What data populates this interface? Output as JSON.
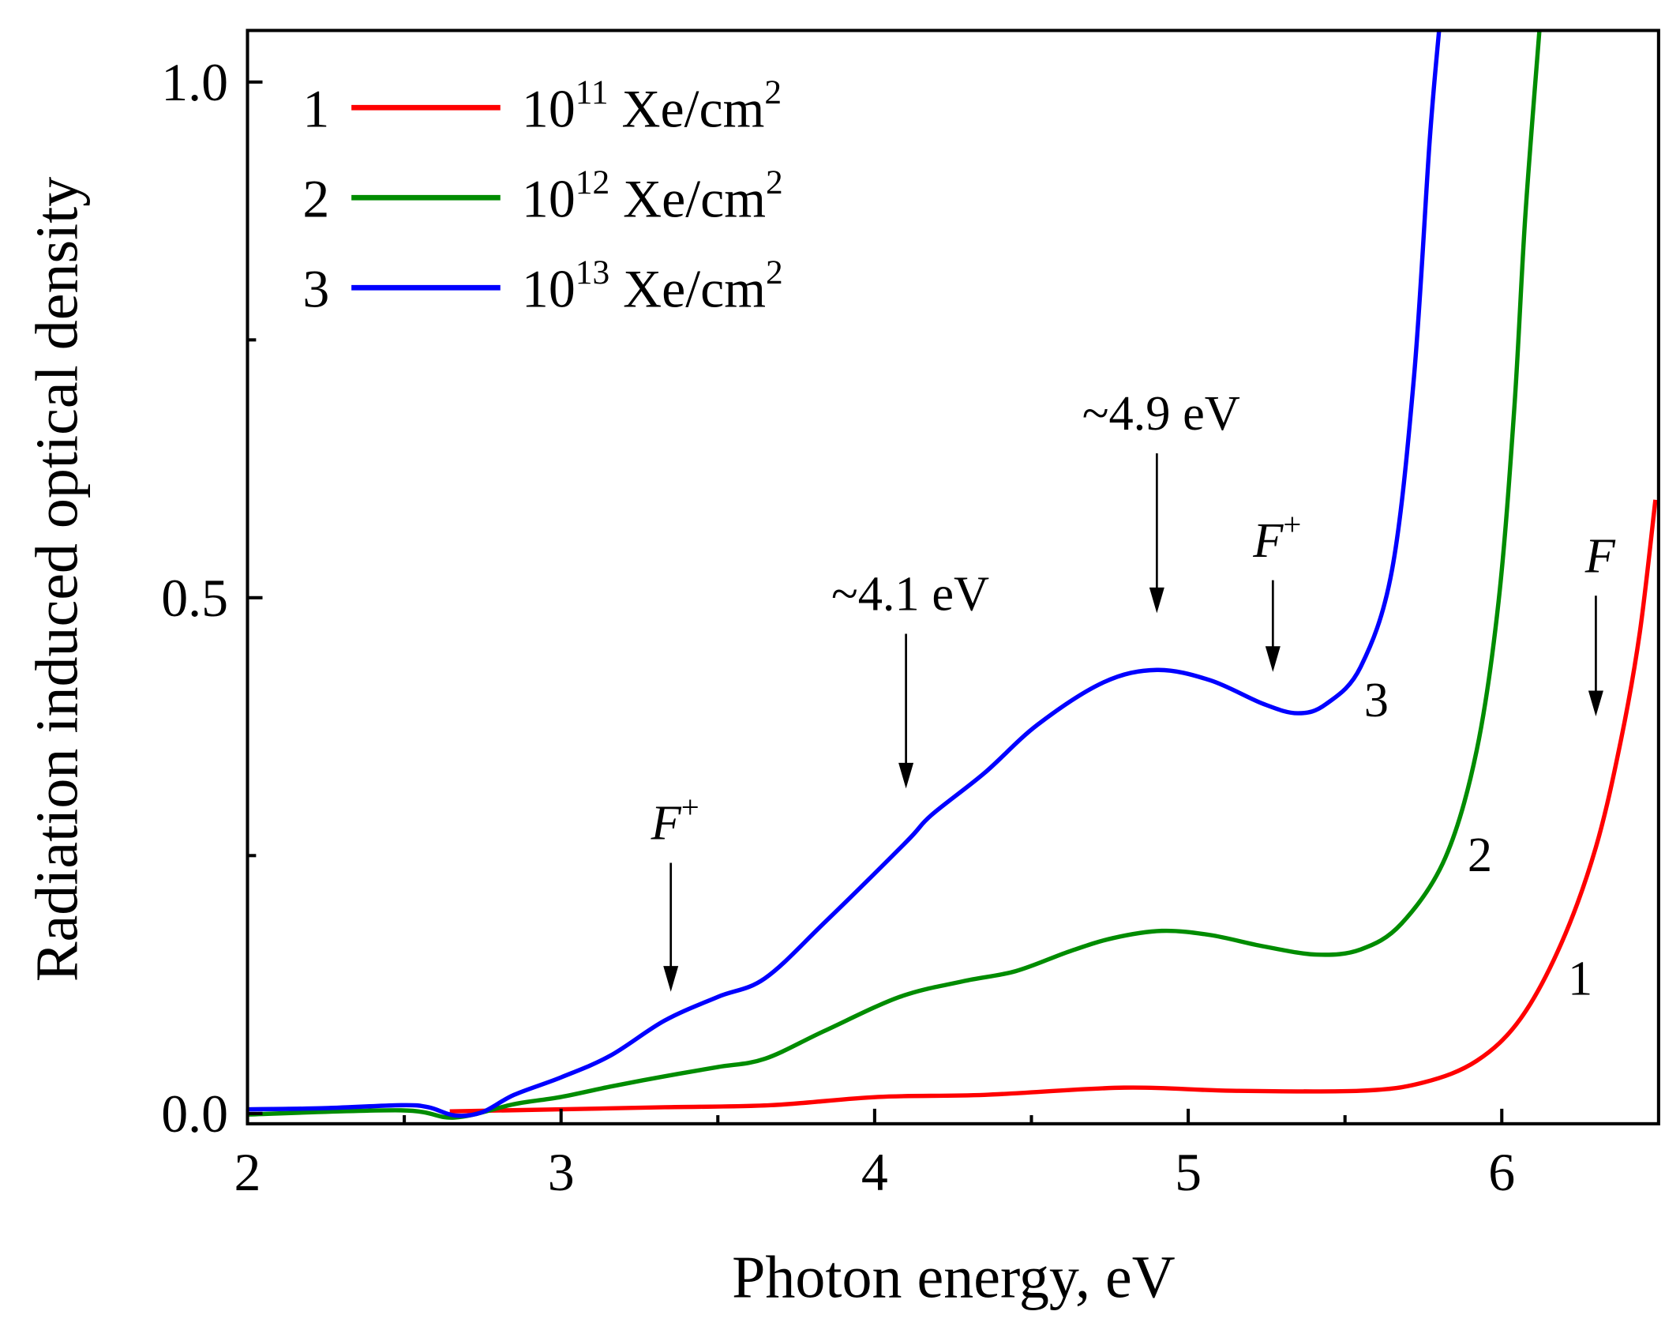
{
  "chart_data": {
    "type": "line",
    "title": "",
    "xlabel": "Photon energy, eV",
    "ylabel": "Radiation induced optical density",
    "xlim": [
      2,
      6.5
    ],
    "ylim": [
      -0.01,
      1.05
    ],
    "xticks": [
      2,
      3,
      4,
      5,
      6
    ],
    "xtick_labels": [
      "2",
      "3",
      "4",
      "5",
      "6"
    ],
    "xminor": [
      2.5,
      3.5,
      4.5,
      5.5
    ],
    "yticks": [
      0,
      0.5,
      1.0
    ],
    "ytick_labels": [
      "0.0",
      "0.5",
      "1.0"
    ],
    "yminor": [
      0.25,
      0.75
    ],
    "grid": false,
    "legend_position": "top-left",
    "series": [
      {
        "id": "1",
        "name": "10",
        "exp": "11",
        "unit": " Xe/cm",
        "unit_exp": "2",
        "color": "#ff0000",
        "curve_label": "1",
        "x": [
          2.645,
          3.0,
          3.33,
          3.67,
          4.01,
          4.35,
          4.795,
          5.14,
          5.55,
          5.75,
          5.92,
          6.06,
          6.19,
          6.3,
          6.38,
          6.44,
          6.49
        ],
        "y": [
          0.002,
          0.004,
          0.006,
          0.008,
          0.016,
          0.018,
          0.025,
          0.022,
          0.022,
          0.03,
          0.051,
          0.092,
          0.165,
          0.258,
          0.362,
          0.466,
          0.595
        ]
      },
      {
        "id": "2",
        "name": "10",
        "exp": "12",
        "unit": " Xe/cm",
        "unit_exp": "2",
        "color": "#008c00",
        "curve_label": "2",
        "x": [
          2.0,
          2.49,
          2.66,
          2.85,
          3.0,
          3.157,
          3.33,
          3.5,
          3.65,
          3.84,
          4.08,
          4.28,
          4.45,
          4.62,
          4.76,
          4.915,
          5.07,
          5.24,
          5.41,
          5.55,
          5.68,
          5.82,
          5.92,
          5.99,
          6.04,
          6.075,
          6.12
        ],
        "y": [
          -0.001,
          0.003,
          -0.004,
          0.009,
          0.016,
          0.026,
          0.036,
          0.045,
          0.053,
          0.08,
          0.113,
          0.128,
          0.138,
          0.157,
          0.17,
          0.177,
          0.173,
          0.162,
          0.154,
          0.159,
          0.184,
          0.248,
          0.352,
          0.497,
          0.684,
          0.87,
          1.05
        ]
      },
      {
        "id": "3",
        "name": "10",
        "exp": "13",
        "unit": " Xe/cm",
        "unit_exp": "2",
        "color": "#0000ff",
        "curve_label": "3",
        "x": [
          2.0,
          2.235,
          2.49,
          2.577,
          2.662,
          2.747,
          2.85,
          3.0,
          3.157,
          3.33,
          3.5,
          3.65,
          3.84,
          4.1,
          4.18,
          4.35,
          4.52,
          4.73,
          4.9,
          5.07,
          5.24,
          5.35,
          5.44,
          5.55,
          5.65,
          5.72,
          5.77,
          5.8
        ],
        "y": [
          0.004,
          0.005,
          0.008,
          0.006,
          -0.002,
          0.001,
          0.018,
          0.035,
          0.056,
          0.09,
          0.113,
          0.131,
          0.185,
          0.263,
          0.289,
          0.33,
          0.377,
          0.418,
          0.43,
          0.42,
          0.397,
          0.388,
          0.397,
          0.433,
          0.527,
          0.714,
          0.943,
          1.05
        ]
      }
    ],
    "annotations": [
      {
        "text": "~4.9 eV",
        "italic": false,
        "sup": "",
        "x": 4.9,
        "arrow_from": 0.64,
        "arrow_to": 0.485
      },
      {
        "text": "~4.1 eV",
        "italic": false,
        "sup": "",
        "x": 4.1,
        "arrow_from": 0.465,
        "arrow_to": 0.315
      },
      {
        "text": "F",
        "italic": true,
        "sup": "+",
        "x": 3.35,
        "arrow_from": 0.243,
        "arrow_to": 0.118
      },
      {
        "text": "F",
        "italic": true,
        "sup": "+",
        "x": 5.27,
        "arrow_from": 0.517,
        "arrow_to": 0.428
      },
      {
        "text": "F",
        "italic": true,
        "sup": "",
        "x": 6.3,
        "arrow_from": 0.502,
        "arrow_to": 0.385
      }
    ]
  }
}
